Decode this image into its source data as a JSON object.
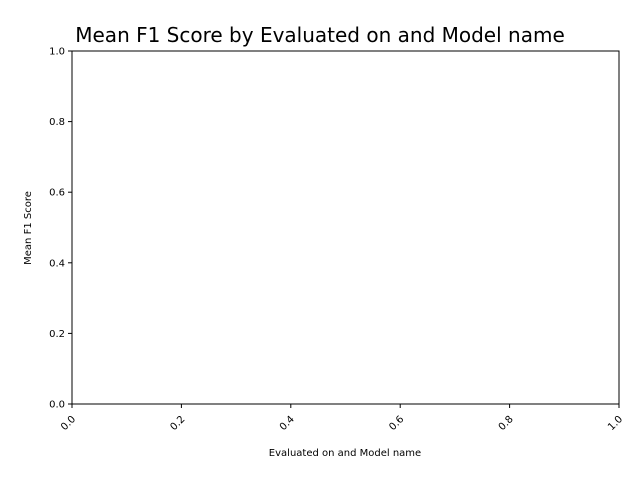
{
  "chart_data": {
    "type": "bar",
    "title": "Mean F1 Score by Evaluated on and Model name",
    "xlabel": "Evaluated on and Model name",
    "ylabel": "Mean F1 Score",
    "xlim": [
      0.0,
      1.0
    ],
    "ylim": [
      0.0,
      1.0
    ],
    "xticks": [
      "0.0",
      "0.2",
      "0.4",
      "0.6",
      "0.8",
      "1.0"
    ],
    "yticks": [
      "0.0",
      "0.2",
      "0.4",
      "0.6",
      "0.8",
      "1.0"
    ],
    "categories": [],
    "values": [],
    "grid": false,
    "legend": "none"
  }
}
